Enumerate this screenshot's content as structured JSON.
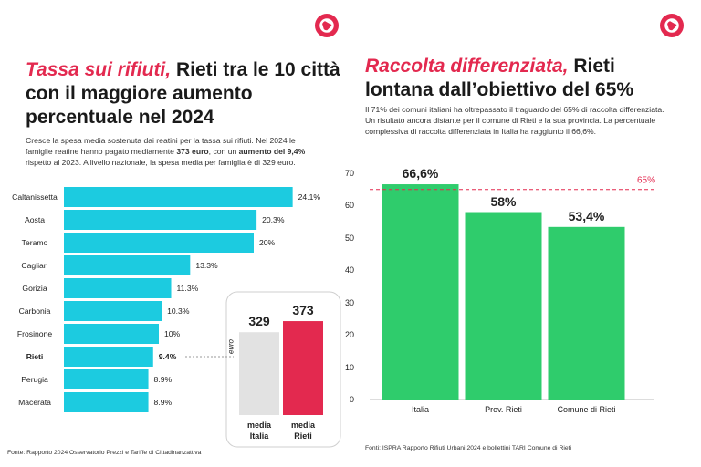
{
  "chart_data": [
    {
      "type": "hbar",
      "title_highlight": "Tassa sui rifiuti,",
      "title": "Rieti tra le 10 città con il maggiore aumento percentuale nel 2024",
      "description_parts": [
        {
          "text": "Cresce la spesa media sostenuta dai reatini per la tassa sui rifiuti. Nel 2024 le famiglie reatine hanno pagato mediamente ",
          "bold": false
        },
        {
          "text": "373 euro",
          "bold": true
        },
        {
          "text": ", con un ",
          "bold": false
        },
        {
          "text": "aumento del 9,4%",
          "bold": true
        },
        {
          "text": " rispetto al 2023. A livello nazionale, la spesa media per famiglia è di 329 euro.",
          "bold": false
        }
      ],
      "categories": [
        "Caltanissetta",
        "Aosta",
        "Teramo",
        "Cagliari",
        "Gorizia",
        "Carbonia",
        "Frosinone",
        "Rieti",
        "Perugia",
        "Macerata"
      ],
      "values": [
        24.1,
        20.3,
        20,
        13.3,
        11.3,
        10.3,
        10,
        9.4,
        8.9,
        8.9
      ],
      "value_labels": [
        "24.1%",
        "20.3%",
        "20%",
        "13.3%",
        "11.3%",
        "10.3%",
        "10%",
        "9.4%",
        "8.9%",
        "8.9%"
      ],
      "color": "#1ccbe0",
      "highlight": "Rieti",
      "source": "Fonte: Rapporto 2024 Osservatorio Prezzi e Tariffe di Cittadinanzattiva"
    },
    {
      "type": "bar",
      "y_label": "euro",
      "categories": [
        "media Italia",
        "media Rieti"
      ],
      "values": [
        329,
        373
      ],
      "colors": [
        "#e2e2e2",
        "#e3294f"
      ]
    },
    {
      "type": "bar",
      "title_highlight": "Raccolta differenziata,",
      "title": "Rieti lontana dall’obiettivo del 65%",
      "description_parts": [
        {
          "text": "Il 71% dei comuni italiani ha oltrepassato il traguardo del 65% di raccolta differenziata. Un risultato ancora distante per il comune di Rieti e la sua provincia. La percentuale complessiva di raccolta differenziata in Italia ha raggiunto il 66,6%.",
          "bold": false
        }
      ],
      "categories": [
        "Italia",
        "Prov. Rieti",
        "Comune di Rieti"
      ],
      "values": [
        66.6,
        58,
        53.4
      ],
      "value_labels": [
        "66,6%",
        "58%",
        "53,4%"
      ],
      "color": "#2fcc6c",
      "ylim": [
        0,
        70
      ],
      "yticks": [
        0,
        10,
        20,
        30,
        40,
        50,
        60,
        70
      ],
      "grid": false,
      "target": {
        "value": 65,
        "label": "65%"
      },
      "source": "Fonti: ISPRA Rapporto Rifiuti Urbani 2024 e bollettini TARI Comune di Rieti"
    }
  ]
}
